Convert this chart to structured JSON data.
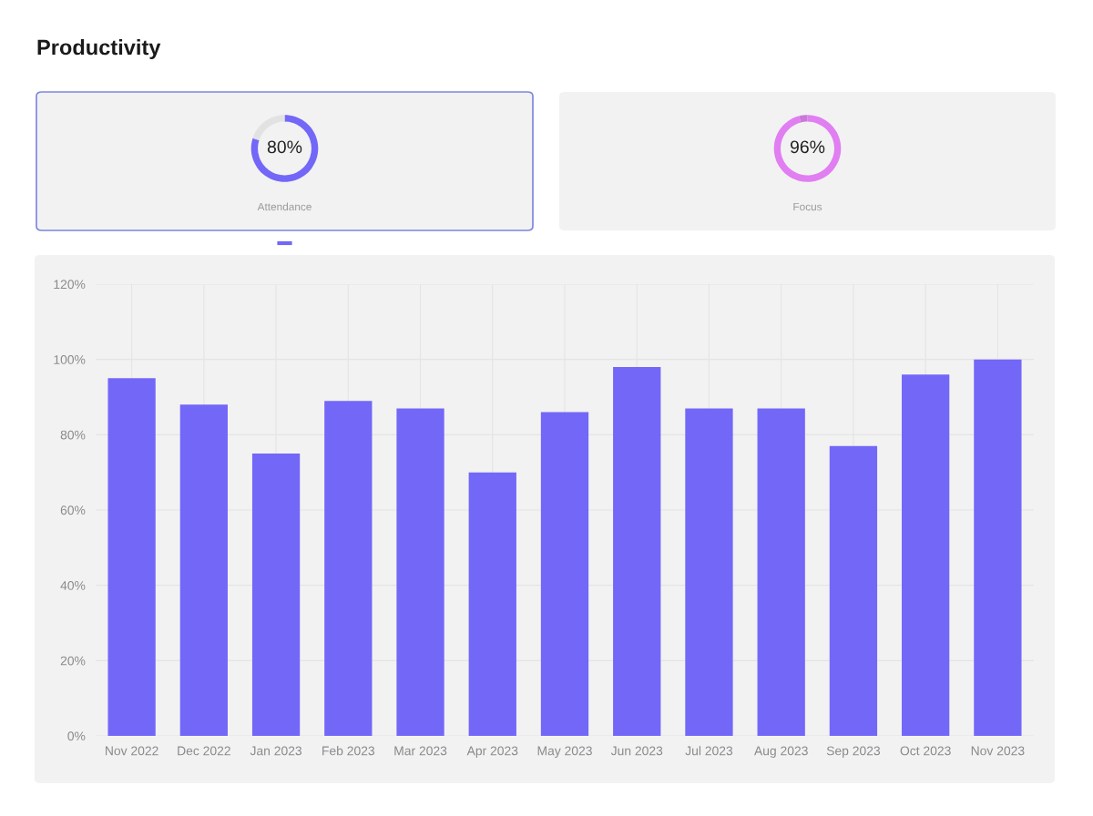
{
  "chart_data": [
    {
      "type": "other",
      "title": "Productivity"
    },
    {
      "type": "donut",
      "title": "Attendance",
      "categories": [
        null,
        null
      ],
      "values": [
        80,
        20
      ],
      "colors": [
        "#7367f8",
        "#e2e2e2"
      ],
      "annotations": [
        "80%"
      ]
    },
    {
      "type": "donut",
      "title": "Focus",
      "categories": [
        null,
        null
      ],
      "values": [
        96,
        4
      ],
      "colors": [
        "#e07ef2",
        "#c97ad8"
      ],
      "annotations": [
        "96%"
      ]
    },
    {
      "type": "bar",
      "categories": [
        "Nov 2022",
        "Dec 2022",
        "Jan 2023",
        "Feb 2023",
        "Mar 2023",
        "Apr 2023",
        "May 2023",
        "Jun 2023",
        "Jul 2023",
        "Aug 2023",
        "Sep 2023",
        "Oct 2023",
        "Nov 2023"
      ],
      "values": [
        95,
        88,
        75,
        89,
        87,
        70,
        86,
        98,
        87,
        87,
        77,
        96,
        100
      ],
      "color": "#7367f8",
      "ylim": [
        0,
        120
      ],
      "yticks": [
        {
          "value": 0,
          "label": "0%"
        },
        {
          "value": 20,
          "label": "20%"
        },
        {
          "value": 40,
          "label": "40%"
        },
        {
          "value": 60,
          "label": "60%"
        },
        {
          "value": 80,
          "label": "80%"
        },
        {
          "value": 100,
          "label": "100%"
        },
        {
          "value": 120,
          "label": "120%"
        }
      ],
      "grid": true
    }
  ]
}
